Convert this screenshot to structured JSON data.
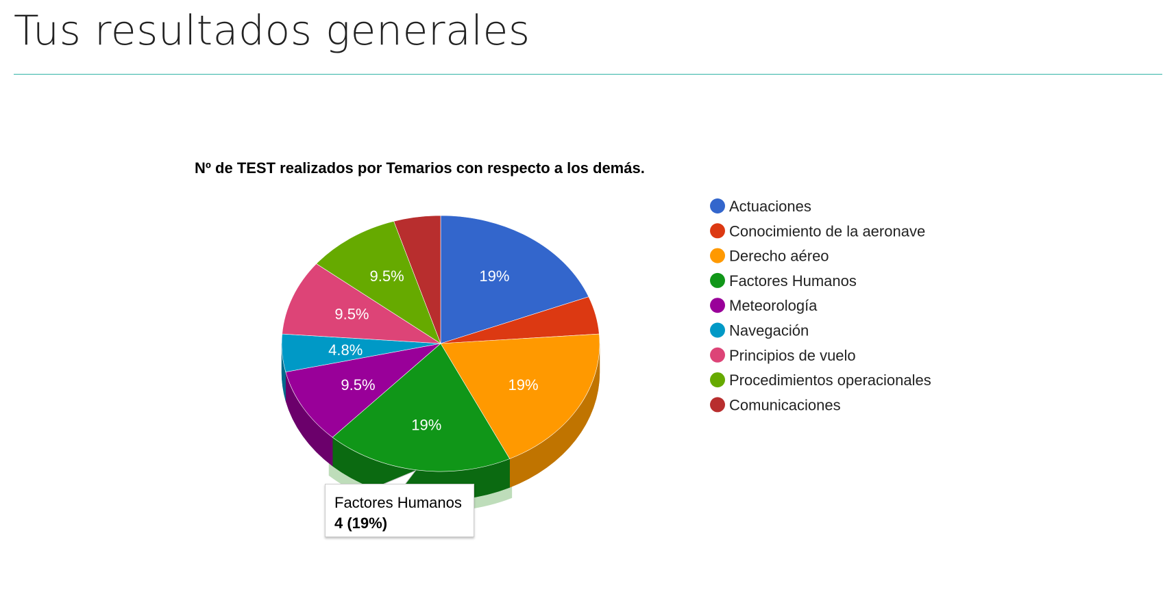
{
  "page": {
    "title": "Tus resultados generales",
    "rule_color": "#31b3a6"
  },
  "chart_data": {
    "type": "pie",
    "is3D": true,
    "title": "Nº de TEST realizados por Temarios con respecto a los demás.",
    "legend_position": "right",
    "slices": [
      {
        "label": "Actuaciones",
        "value": 4,
        "percent_label": "19%",
        "color": "#3366cc",
        "shade": "#23478f"
      },
      {
        "label": "Conocimiento de la aeronave",
        "value": 1,
        "percent_label": "",
        "color": "#dc3912",
        "shade": "#9a280c"
      },
      {
        "label": "Derecho aéreo",
        "value": 4,
        "percent_label": "19%",
        "color": "#ff9900",
        "shade": "#c07400"
      },
      {
        "label": "Factores Humanos",
        "value": 4,
        "percent_label": "19%",
        "color": "#109618",
        "shade": "#0b6a11"
      },
      {
        "label": "Meteorología",
        "value": 2,
        "percent_label": "9.5%",
        "color": "#990099",
        "shade": "#6b006b"
      },
      {
        "label": "Navegación",
        "value": 1,
        "percent_label": "4.8%",
        "color": "#0099c6",
        "shade": "#006b8b"
      },
      {
        "label": "Principios de vuelo",
        "value": 2,
        "percent_label": "9.5%",
        "color": "#dd4477",
        "shade": "#9b3053"
      },
      {
        "label": "Procedimientos operacionales",
        "value": 2,
        "percent_label": "9.5%",
        "color": "#66aa00",
        "shade": "#477700"
      },
      {
        "label": "Comunicaciones",
        "value": 1,
        "percent_label": "",
        "color": "#b82e2e",
        "shade": "#812020"
      }
    ],
    "highlighted_slice": "Factores Humanos"
  },
  "tooltip": {
    "label": "Factores Humanos",
    "value": "4 (19%)"
  }
}
